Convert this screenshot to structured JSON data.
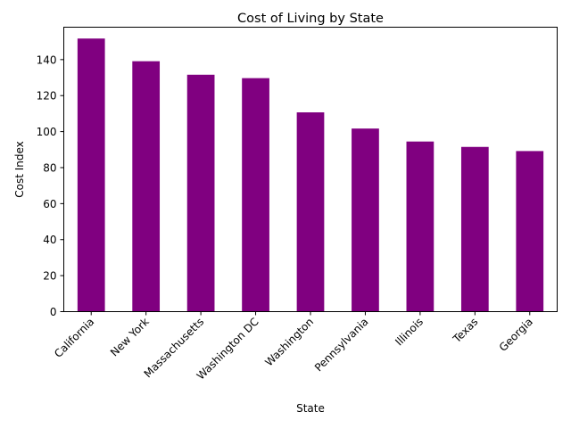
{
  "chart_data": {
    "type": "bar",
    "title": "Cost of Living by State",
    "xlabel": "State",
    "ylabel": "Cost Index",
    "categories": [
      "California",
      "New York",
      "Massachusetts",
      "Washington DC",
      "Washington",
      "Pennsylvania",
      "Illinois",
      "Texas",
      "Georgia"
    ],
    "values": [
      151.7,
      139.1,
      131.6,
      129.7,
      110.7,
      101.7,
      94.5,
      91.5,
      89.2
    ],
    "ylim": [
      0,
      158
    ],
    "yticks": [
      0,
      20,
      40,
      60,
      80,
      100,
      120,
      140
    ],
    "bar_color": "#800080",
    "grid": false,
    "legend": "none"
  }
}
